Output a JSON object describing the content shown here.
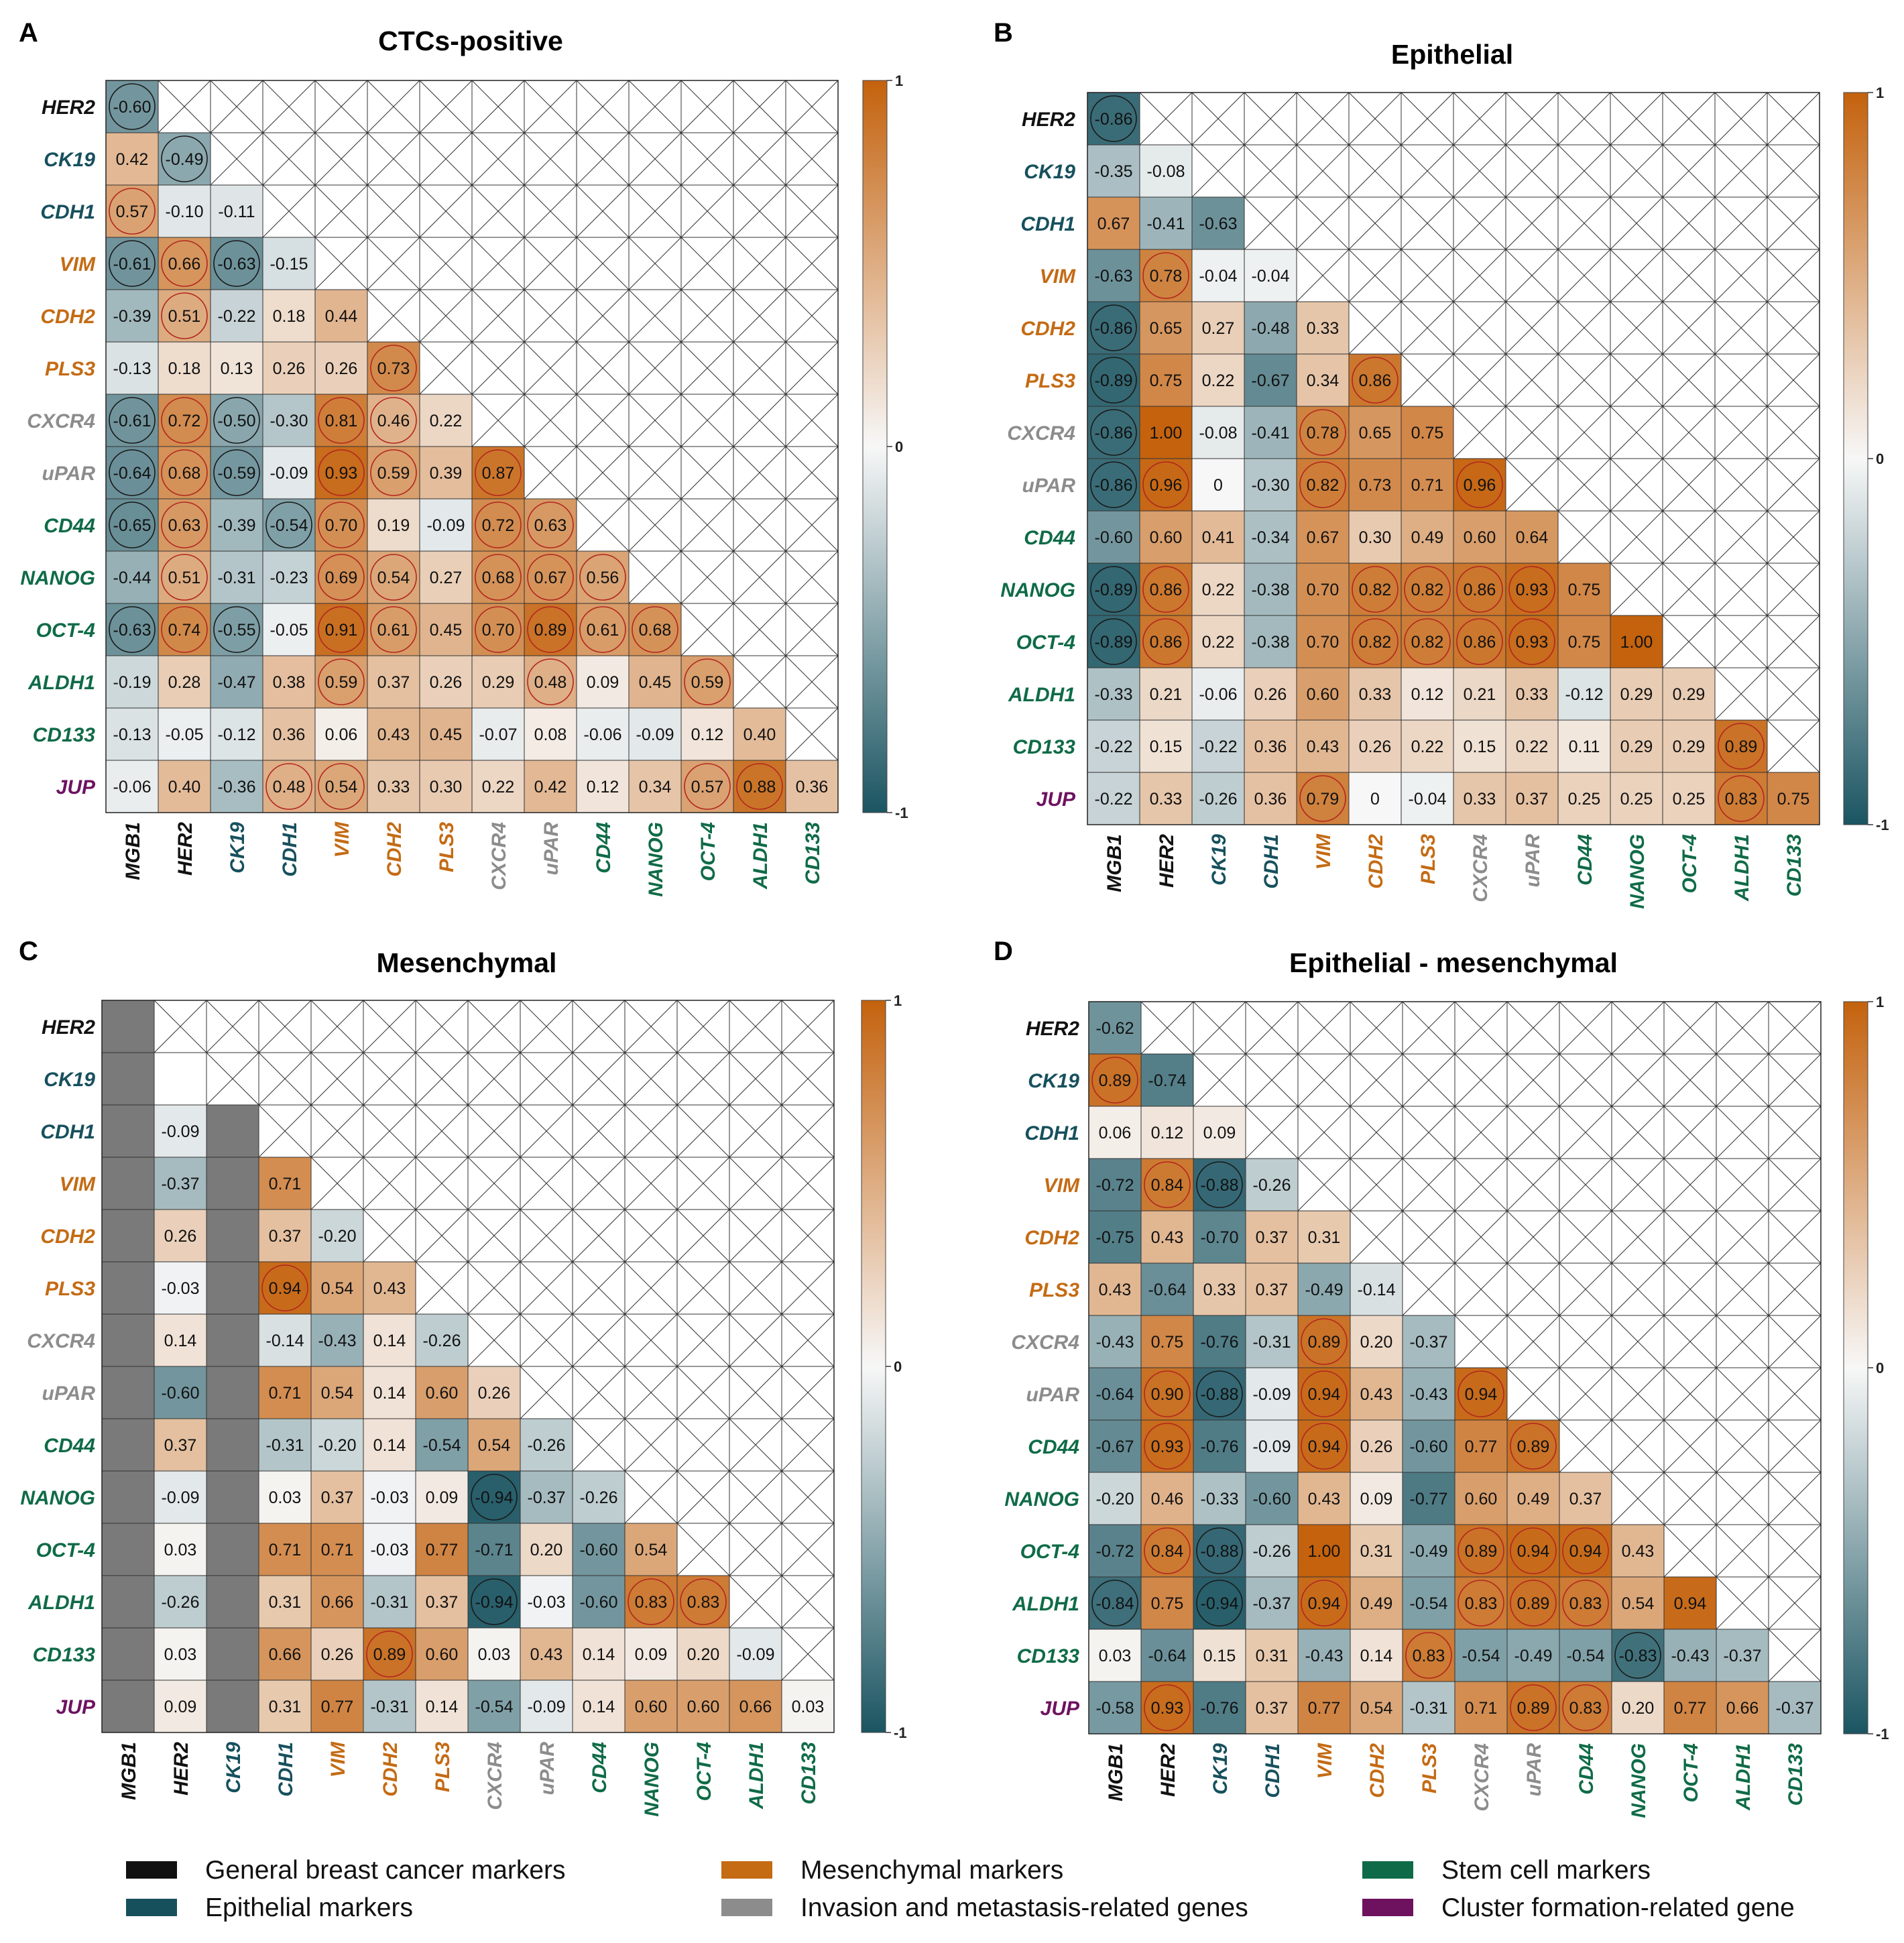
{
  "groups": {
    "general": {
      "color": "#111111",
      "label": "General breast cancer markers"
    },
    "epithelial": {
      "color": "#17505d",
      "label": "Epithelial markers"
    },
    "mesenchymal": {
      "color": "#c46b14",
      "label": "Mesenchymal markers"
    },
    "invasion": {
      "color": "#8c8c8c",
      "label": "Invasion and metastasis-related genes"
    },
    "stem": {
      "color": "#0f6b47",
      "label": "Stem cell markers"
    },
    "cluster": {
      "color": "#6e1260",
      "label": "Cluster formation-related gene"
    }
  },
  "genes": [
    "MGB1",
    "HER2",
    "CK19",
    "CDH1",
    "VIM",
    "CDH2",
    "PLS3",
    "CXCR4",
    "uPAR",
    "CD44",
    "NANOG",
    "OCT-4",
    "ALDH1",
    "CD133",
    "JUP"
  ],
  "gene_groups": [
    "general",
    "general",
    "epithelial",
    "epithelial",
    "mesenchymal",
    "mesenchymal",
    "mesenchymal",
    "invasion",
    "invasion",
    "stem",
    "stem",
    "stem",
    "stem",
    "stem",
    "cluster"
  ],
  "colorbar": {
    "max_label": "1",
    "mid_label": "0",
    "min_label": "-1",
    "neg_color": "#1b5562",
    "mid_color": "#f7f7f7",
    "pos_color": "#c4620d"
  },
  "legend": {
    "items": [
      "general",
      "epithelial",
      "mesenchymal",
      "invasion",
      "stem",
      "cluster"
    ]
  },
  "chart_data": [
    {
      "type": "heatmap",
      "letter": "A",
      "title": "CTCs-positive",
      "rows": [
        "HER2",
        "CK19",
        "CDH1",
        "VIM",
        "CDH2",
        "PLS3",
        "CXCR4",
        "uPAR",
        "CD44",
        "NANOG",
        "OCT-4",
        "ALDH1",
        "CD133",
        "JUP"
      ],
      "columns": [
        "MGB1",
        "HER2",
        "CK19",
        "CDH1",
        "VIM",
        "CDH2",
        "PLS3",
        "CXCR4",
        "uPAR",
        "CD44",
        "NANOG",
        "OCT-4",
        "ALDH1",
        "CD133"
      ],
      "values": [
        [
          "-0.60"
        ],
        [
          "0.42",
          "-0.49"
        ],
        [
          "0.57",
          "-0.10",
          "-0.11"
        ],
        [
          "-0.61",
          "0.66",
          "-0.63",
          "-0.15"
        ],
        [
          "-0.39",
          "0.51",
          "-0.22",
          "0.18",
          "0.44"
        ],
        [
          "-0.13",
          "0.18",
          "0.13",
          "0.26",
          "0.26",
          "0.73"
        ],
        [
          "-0.61",
          "0.72",
          "-0.50",
          "-0.30",
          "0.81",
          "0.46",
          "0.22"
        ],
        [
          "-0.64",
          "0.68",
          "-0.59",
          "-0.09",
          "0.93",
          "0.59",
          "0.39",
          "0.87"
        ],
        [
          "-0.65",
          "0.63",
          "-0.39",
          "-0.54",
          "0.70",
          "0.19",
          "-0.09",
          "0.72",
          "0.63"
        ],
        [
          "-0.44",
          "0.51",
          "-0.31",
          "-0.23",
          "0.69",
          "0.54",
          "0.27",
          "0.68",
          "0.67",
          "0.56"
        ],
        [
          "-0.63",
          "0.74",
          "-0.55",
          "-0.05",
          "0.91",
          "0.61",
          "0.45",
          "0.70",
          "0.89",
          "0.61",
          "0.68"
        ],
        [
          "-0.19",
          "0.28",
          "-0.47",
          "0.38",
          "0.59",
          "0.37",
          "0.26",
          "0.29",
          "0.48",
          "0.09",
          "0.45",
          "0.59"
        ],
        [
          "-0.13",
          "-0.05",
          "-0.12",
          "0.36",
          "0.06",
          "0.43",
          "0.45",
          "-0.07",
          "0.08",
          "-0.06",
          "-0.09",
          "0.12",
          "0.40"
        ],
        [
          "-0.06",
          "0.40",
          "-0.36",
          "0.48",
          "0.54",
          "0.33",
          "0.30",
          "0.22",
          "0.42",
          "0.12",
          "0.34",
          "0.57",
          "0.88",
          "0.36"
        ]
      ],
      "significant": [
        [
          1
        ],
        [
          0,
          1
        ],
        [
          1,
          0,
          0
        ],
        [
          1,
          1,
          1,
          0
        ],
        [
          0,
          1,
          0,
          0,
          0
        ],
        [
          0,
          0,
          0,
          0,
          0,
          1
        ],
        [
          1,
          1,
          1,
          0,
          1,
          1,
          0
        ],
        [
          1,
          1,
          1,
          0,
          1,
          1,
          0,
          1
        ],
        [
          1,
          1,
          0,
          1,
          1,
          0,
          0,
          1,
          1
        ],
        [
          0,
          1,
          0,
          0,
          1,
          1,
          0,
          1,
          1,
          1
        ],
        [
          1,
          1,
          1,
          0,
          1,
          1,
          0,
          1,
          1,
          1,
          1
        ],
        [
          0,
          0,
          0,
          0,
          1,
          0,
          0,
          0,
          1,
          0,
          0,
          1
        ],
        [
          0,
          0,
          0,
          0,
          0,
          0,
          0,
          0,
          0,
          0,
          0,
          0,
          0
        ],
        [
          0,
          0,
          0,
          1,
          1,
          0,
          0,
          0,
          0,
          0,
          0,
          1,
          1,
          0
        ]
      ],
      "gray_columns": [],
      "value_range": [
        -1,
        1
      ]
    },
    {
      "type": "heatmap",
      "letter": "B",
      "title": "Epithelial",
      "rows": [
        "HER2",
        "CK19",
        "CDH1",
        "VIM",
        "CDH2",
        "PLS3",
        "CXCR4",
        "uPAR",
        "CD44",
        "NANOG",
        "OCT-4",
        "ALDH1",
        "CD133",
        "JUP"
      ],
      "columns": [
        "MGB1",
        "HER2",
        "CK19",
        "CDH1",
        "VIM",
        "CDH2",
        "PLS3",
        "CXCR4",
        "uPAR",
        "CD44",
        "NANOG",
        "OCT-4",
        "ALDH1",
        "CD133"
      ],
      "values": [
        [
          "-0.86"
        ],
        [
          "-0.35",
          "-0.08"
        ],
        [
          "0.67",
          "-0.41",
          "-0.63"
        ],
        [
          "-0.63",
          "0.78",
          "-0.04",
          "-0.04"
        ],
        [
          "-0.86",
          "0.65",
          "0.27",
          "-0.48",
          "0.33"
        ],
        [
          "-0.89",
          "0.75",
          "0.22",
          "-0.67",
          "0.34",
          "0.86"
        ],
        [
          "-0.86",
          "1.00",
          "-0.08",
          "-0.41",
          "0.78",
          "0.65",
          "0.75"
        ],
        [
          "-0.86",
          "0.96",
          "0",
          "-0.30",
          "0.82",
          "0.73",
          "0.71",
          "0.96"
        ],
        [
          "-0.60",
          "0.60",
          "0.41",
          "-0.34",
          "0.67",
          "0.30",
          "0.49",
          "0.60",
          "0.64"
        ],
        [
          "-0.89",
          "0.86",
          "0.22",
          "-0.38",
          "0.70",
          "0.82",
          "0.82",
          "0.86",
          "0.93",
          "0.75"
        ],
        [
          "-0.89",
          "0.86",
          "0.22",
          "-0.38",
          "0.70",
          "0.82",
          "0.82",
          "0.86",
          "0.93",
          "0.75",
          "1.00"
        ],
        [
          "-0.33",
          "0.21",
          "-0.06",
          "0.26",
          "0.60",
          "0.33",
          "0.12",
          "0.21",
          "0.33",
          "-0.12",
          "0.29",
          "0.29"
        ],
        [
          "-0.22",
          "0.15",
          "-0.22",
          "0.36",
          "0.43",
          "0.26",
          "0.22",
          "0.15",
          "0.22",
          "0.11",
          "0.29",
          "0.29",
          "0.89"
        ],
        [
          "-0.22",
          "0.33",
          "-0.26",
          "0.36",
          "0.79",
          "0",
          "-0.04",
          "0.33",
          "0.37",
          "0.25",
          "0.25",
          "0.25",
          "0.83",
          "0.75"
        ]
      ],
      "significant": [
        [
          1
        ],
        [
          0,
          0
        ],
        [
          0,
          0,
          0
        ],
        [
          0,
          1,
          0,
          0
        ],
        [
          1,
          0,
          0,
          0,
          0
        ],
        [
          1,
          0,
          0,
          0,
          0,
          1
        ],
        [
          1,
          0,
          0,
          0,
          1,
          0,
          0
        ],
        [
          1,
          1,
          0,
          0,
          1,
          0,
          0,
          1
        ],
        [
          0,
          0,
          0,
          0,
          0,
          0,
          0,
          0,
          0
        ],
        [
          1,
          1,
          0,
          0,
          0,
          1,
          1,
          1,
          1,
          0
        ],
        [
          1,
          1,
          0,
          0,
          0,
          1,
          1,
          1,
          1,
          0,
          0
        ],
        [
          0,
          0,
          0,
          0,
          0,
          0,
          0,
          0,
          0,
          0,
          0,
          0
        ],
        [
          0,
          0,
          0,
          0,
          0,
          0,
          0,
          0,
          0,
          0,
          0,
          0,
          1
        ],
        [
          0,
          0,
          0,
          0,
          1,
          0,
          0,
          0,
          0,
          0,
          0,
          0,
          1,
          0
        ]
      ],
      "gray_columns": [],
      "value_range": [
        -1,
        1
      ]
    },
    {
      "type": "heatmap",
      "letter": "C",
      "title": "Mesenchymal",
      "rows": [
        "HER2",
        "CK19",
        "CDH1",
        "VIM",
        "CDH2",
        "PLS3",
        "CXCR4",
        "uPAR",
        "CD44",
        "NANOG",
        "OCT-4",
        "ALDH1",
        "CD133",
        "JUP"
      ],
      "columns": [
        "MGB1",
        "HER2",
        "CK19",
        "CDH1",
        "VIM",
        "CDH2",
        "PLS3",
        "CXCR4",
        "uPAR",
        "CD44",
        "NANOG",
        "OCT-4",
        "ALDH1",
        "CD133"
      ],
      "values": [
        [
          ""
        ],
        [
          "",
          ""
        ],
        [
          "",
          "-0.09",
          ""
        ],
        [
          "",
          "-0.37",
          "",
          "0.71"
        ],
        [
          "",
          "0.26",
          "",
          "0.37",
          "-0.20"
        ],
        [
          "",
          "-0.03",
          "",
          "0.94",
          "0.54",
          "0.43"
        ],
        [
          "",
          "0.14",
          "",
          "-0.14",
          "-0.43",
          "0.14",
          "-0.26"
        ],
        [
          "",
          "-0.60",
          "",
          "0.71",
          "0.54",
          "0.14",
          "0.60",
          "0.26"
        ],
        [
          "",
          "0.37",
          "",
          "-0.31",
          "-0.20",
          "0.14",
          "-0.54",
          "0.54",
          "-0.26"
        ],
        [
          "",
          "-0.09",
          "",
          "0.03",
          "0.37",
          "-0.03",
          "0.09",
          "-0.94",
          "-0.37",
          "-0.26"
        ],
        [
          "",
          "0.03",
          "",
          "0.71",
          "0.71",
          "-0.03",
          "0.77",
          "-0.71",
          "0.20",
          "-0.60",
          "0.54"
        ],
        [
          "",
          "-0.26",
          "",
          "0.31",
          "0.66",
          "-0.31",
          "0.37",
          "-0.94",
          "-0.03",
          "-0.60",
          "0.83",
          "0.83"
        ],
        [
          "",
          "0.03",
          "",
          "0.66",
          "0.26",
          "0.89",
          "0.60",
          "0.03",
          "0.43",
          "0.14",
          "0.09",
          "0.20",
          "-0.09"
        ],
        [
          "",
          "0.09",
          "",
          "0.31",
          "0.77",
          "-0.31",
          "0.14",
          "-0.54",
          "-0.09",
          "0.14",
          "0.60",
          "0.60",
          "0.66",
          "0.03"
        ]
      ],
      "significant": [
        [
          0
        ],
        [
          0,
          0
        ],
        [
          0,
          0,
          0
        ],
        [
          0,
          0,
          0,
          0
        ],
        [
          0,
          0,
          0,
          0,
          0
        ],
        [
          0,
          0,
          0,
          1,
          0,
          0
        ],
        [
          0,
          0,
          0,
          0,
          0,
          0,
          0
        ],
        [
          0,
          0,
          0,
          0,
          0,
          0,
          0,
          0
        ],
        [
          0,
          0,
          0,
          0,
          0,
          0,
          0,
          0,
          0
        ],
        [
          0,
          0,
          0,
          0,
          0,
          0,
          0,
          1,
          0,
          0
        ],
        [
          0,
          0,
          0,
          0,
          0,
          0,
          0,
          0,
          0,
          0,
          0
        ],
        [
          0,
          0,
          0,
          0,
          0,
          0,
          0,
          1,
          0,
          0,
          1,
          1
        ],
        [
          0,
          0,
          0,
          0,
          0,
          1,
          0,
          0,
          0,
          0,
          0,
          0,
          0
        ],
        [
          0,
          0,
          0,
          0,
          0,
          0,
          0,
          0,
          0,
          0,
          0,
          0,
          0,
          0
        ]
      ],
      "gray_columns": [
        "MGB1",
        "CK19"
      ],
      "value_range": [
        -1,
        1
      ]
    },
    {
      "type": "heatmap",
      "letter": "D",
      "title": "Epithelial - mesenchymal",
      "rows": [
        "HER2",
        "CK19",
        "CDH1",
        "VIM",
        "CDH2",
        "PLS3",
        "CXCR4",
        "uPAR",
        "CD44",
        "NANOG",
        "OCT-4",
        "ALDH1",
        "CD133",
        "JUP"
      ],
      "columns": [
        "MGB1",
        "HER2",
        "CK19",
        "CDH1",
        "VIM",
        "CDH2",
        "PLS3",
        "CXCR4",
        "uPAR",
        "CD44",
        "NANOG",
        "OCT-4",
        "ALDH1",
        "CD133"
      ],
      "values": [
        [
          "-0.62"
        ],
        [
          "0.89",
          "-0.74"
        ],
        [
          "0.06",
          "0.12",
          "0.09"
        ],
        [
          "-0.72",
          "0.84",
          "-0.88",
          "-0.26"
        ],
        [
          "-0.75",
          "0.43",
          "-0.70",
          "0.37",
          "0.31"
        ],
        [
          "0.43",
          "-0.64",
          "0.33",
          "0.37",
          "-0.49",
          "-0.14"
        ],
        [
          "-0.43",
          "0.75",
          "-0.76",
          "-0.31",
          "0.89",
          "0.20",
          "-0.37"
        ],
        [
          "-0.64",
          "0.90",
          "-0.88",
          "-0.09",
          "0.94",
          "0.43",
          "-0.43",
          "0.94"
        ],
        [
          "-0.67",
          "0.93",
          "-0.76",
          "-0.09",
          "0.94",
          "0.26",
          "-0.60",
          "0.77",
          "0.89"
        ],
        [
          "-0.20",
          "0.46",
          "-0.33",
          "-0.60",
          "0.43",
          "0.09",
          "-0.77",
          "0.60",
          "0.49",
          "0.37"
        ],
        [
          "-0.72",
          "0.84",
          "-0.88",
          "-0.26",
          "1.00",
          "0.31",
          "-0.49",
          "0.89",
          "0.94",
          "0.94",
          "0.43"
        ],
        [
          "-0.84",
          "0.75",
          "-0.94",
          "-0.37",
          "0.94",
          "0.49",
          "-0.54",
          "0.83",
          "0.89",
          "0.83",
          "0.54",
          "0.94"
        ],
        [
          "0.03",
          "-0.64",
          "0.15",
          "0.31",
          "-0.43",
          "0.14",
          "0.83",
          "-0.54",
          "-0.49",
          "-0.54",
          "-0.83",
          "-0.43",
          "-0.37"
        ],
        [
          "-0.58",
          "0.93",
          "-0.76",
          "0.37",
          "0.77",
          "0.54",
          "-0.31",
          "0.71",
          "0.89",
          "0.83",
          "0.20",
          "0.77",
          "0.66",
          "-0.37"
        ]
      ],
      "significant": [
        [
          0
        ],
        [
          1,
          0
        ],
        [
          0,
          0,
          0
        ],
        [
          0,
          1,
          1,
          0
        ],
        [
          0,
          0,
          0,
          0,
          0
        ],
        [
          0,
          0,
          0,
          0,
          0,
          0
        ],
        [
          0,
          0,
          0,
          0,
          1,
          0,
          0
        ],
        [
          0,
          1,
          1,
          0,
          1,
          0,
          0,
          1
        ],
        [
          0,
          1,
          0,
          0,
          1,
          0,
          0,
          0,
          1
        ],
        [
          0,
          0,
          0,
          0,
          0,
          0,
          0,
          0,
          0,
          0
        ],
        [
          0,
          1,
          1,
          0,
          0,
          0,
          0,
          1,
          1,
          1,
          0
        ],
        [
          1,
          0,
          1,
          0,
          1,
          0,
          0,
          1,
          1,
          1,
          0,
          0
        ],
        [
          0,
          0,
          0,
          0,
          0,
          0,
          1,
          0,
          0,
          0,
          1,
          0,
          0
        ],
        [
          0,
          1,
          0,
          0,
          0,
          0,
          0,
          0,
          1,
          1,
          0,
          0,
          0,
          0
        ]
      ],
      "gray_columns": [],
      "value_range": [
        -1,
        1
      ]
    }
  ]
}
